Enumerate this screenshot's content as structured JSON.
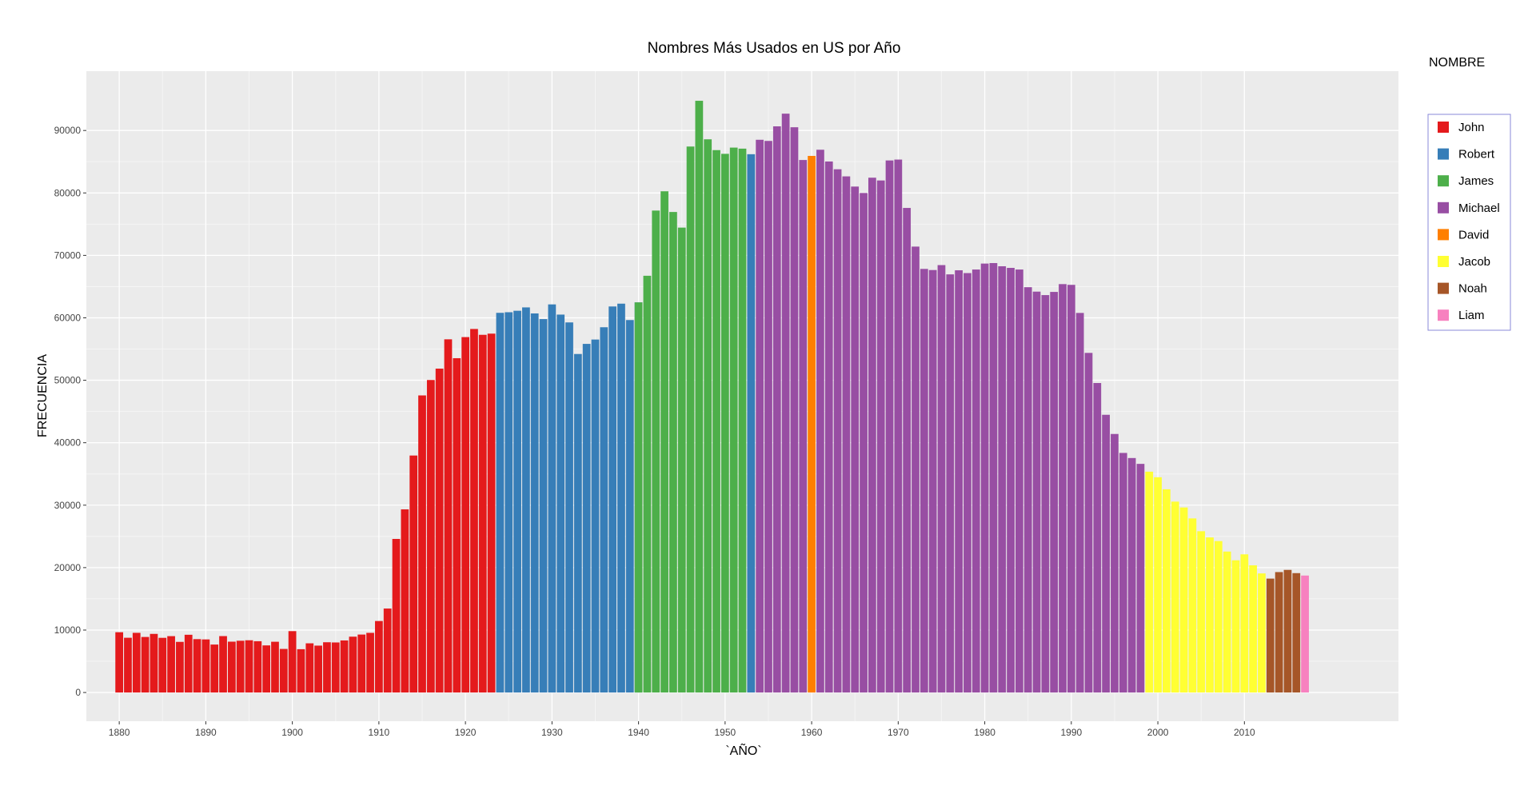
{
  "chart_data": {
    "type": "bar",
    "title": "Nombres Más Usados en US por Año",
    "xlabel": "`AÑO`",
    "ylabel": "FRECUENCIA",
    "legend_title": "NOMBRE",
    "legend_position": "right",
    "grid": true,
    "xlim": [
      1876.2,
      2027.8
    ],
    "ylim": [
      -4600,
      99500
    ],
    "xticks": [
      1880,
      1890,
      1900,
      1910,
      1920,
      1930,
      1940,
      1950,
      1960,
      1970,
      1980,
      1990,
      2000,
      2010
    ],
    "yticks": [
      0,
      10000,
      20000,
      30000,
      40000,
      50000,
      60000,
      70000,
      80000,
      90000
    ],
    "series": [
      {
        "name": "John",
        "color": "#E41A1C",
        "x": [
          1880,
          1881,
          1882,
          1883,
          1884,
          1885,
          1886,
          1887,
          1888,
          1889,
          1890,
          1891,
          1892,
          1893,
          1894,
          1895,
          1896,
          1897,
          1898,
          1899,
          1900,
          1901,
          1902,
          1903,
          1904,
          1905,
          1906,
          1907,
          1908,
          1909,
          1910,
          1911,
          1912,
          1913,
          1914,
          1915,
          1916,
          1917,
          1918,
          1919,
          1920,
          1921,
          1922,
          1923
        ],
        "values": [
          9655,
          8769,
          9557,
          8894,
          9388,
          8756,
          9026,
          8110,
          9247,
          8548,
          8502,
          7680,
          9034,
          8144,
          8288,
          8366,
          8213,
          7544,
          8129,
          6979,
          9829,
          6937,
          7878,
          7509,
          8048,
          8014,
          8338,
          8942,
          9280,
          9555,
          11450,
          13446,
          24593,
          29327,
          37950,
          47575,
          50044,
          51864,
          56560,
          53536,
          56914,
          58215,
          57280,
          57469
        ]
      },
      {
        "name": "Robert",
        "color": "#377EB8",
        "x": [
          1924,
          1925,
          1926,
          1927,
          1928,
          1929,
          1930,
          1931,
          1932,
          1933,
          1934,
          1935,
          1936,
          1937,
          1938,
          1939,
          1940,
          1953
        ],
        "values": [
          60801,
          60897,
          61131,
          61671,
          60703,
          59798,
          62151,
          60518,
          59265,
          54209,
          55827,
          56524,
          58493,
          61819,
          62269,
          59645,
          62471,
          86201
        ]
      },
      {
        "name": "James",
        "color": "#4DAF4A",
        "x": [
          1940,
          1941,
          1942,
          1943,
          1944,
          1945,
          1946,
          1947,
          1948,
          1949,
          1950,
          1951,
          1952
        ],
        "values": [
          62471,
          66737,
          77175,
          80265,
          76949,
          74449,
          87431,
          94757,
          88588,
          86857,
          86263,
          87261,
          87093
        ]
      },
      {
        "name": "Michael",
        "color": "#984EA3",
        "x": [
          1954,
          1955,
          1956,
          1957,
          1958,
          1959,
          1961,
          1962,
          1963,
          1964,
          1965,
          1966,
          1967,
          1968,
          1969,
          1970,
          1971,
          1972,
          1973,
          1974,
          1975,
          1976,
          1977,
          1978,
          1979,
          1980,
          1981,
          1982,
          1983,
          1984,
          1985,
          1986,
          1987,
          1988,
          1989,
          1990,
          1991,
          1992,
          1993,
          1994,
          1995,
          1996,
          1997,
          1998
        ],
        "values": [
          88514,
          88329,
          90665,
          92695,
          90519,
          85274,
          86917,
          85036,
          83791,
          82652,
          81020,
          79993,
          82440,
          81997,
          85202,
          85344,
          77598,
          71408,
          67834,
          67654,
          68445,
          66960,
          67613,
          67165,
          67735,
          68689,
          68768,
          68257,
          67997,
          67736,
          64906,
          64197,
          63641,
          64150,
          65399,
          65282,
          60785,
          54386,
          49561,
          44473,
          41402,
          38365,
          37548,
          36614
        ]
      },
      {
        "name": "David",
        "color": "#FF7F00",
        "x": [
          1960
        ],
        "values": [
          85929
        ]
      },
      {
        "name": "Jacob",
        "color": "#FFFF33",
        "x": [
          1999,
          2000,
          2001,
          2002,
          2003,
          2004,
          2005,
          2006,
          2007,
          2008,
          2009,
          2010,
          2011,
          2012
        ],
        "values": [
          35361,
          34471,
          32541,
          30568,
          29630,
          27879,
          25830,
          24833,
          24250,
          22568,
          21169,
          22127,
          20365,
          19070
        ]
      },
      {
        "name": "Noah",
        "color": "#A65628",
        "x": [
          2013,
          2014,
          2015,
          2016
        ],
        "values": [
          18241,
          19286,
          19635,
          19117
        ]
      },
      {
        "name": "Liam",
        "color": "#F781BF",
        "x": [
          2017
        ],
        "values": [
          18728
        ]
      }
    ]
  }
}
